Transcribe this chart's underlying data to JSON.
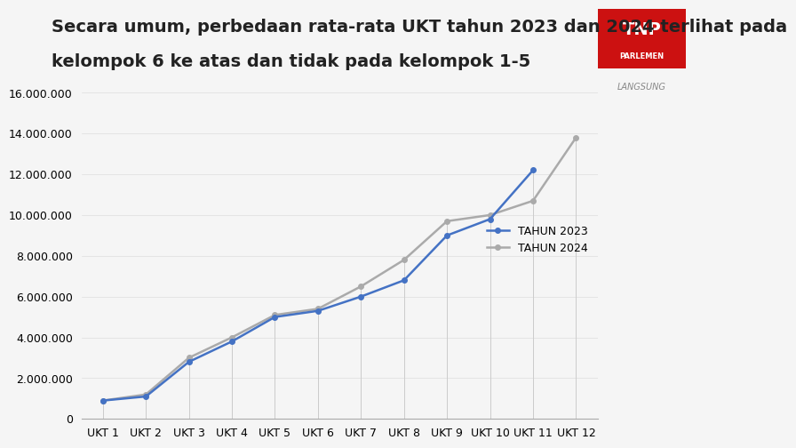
{
  "title_line1": "Secara umum, perbedaan rata-rata UKT tahun 2023 dan 2024 terlihat pada",
  "title_line2": "kelompok 6 ke atas dan tidak pada kelompok 1-5",
  "categories": [
    "UKT 1",
    "UKT 2",
    "UKT 3",
    "UKT 4",
    "UKT 5",
    "UKT 6",
    "UKT 7",
    "UKT 8",
    "UKT 9",
    "UKT 10",
    "UKT 11",
    "UKT 12"
  ],
  "tahun2023": [
    900000,
    1100000,
    2800000,
    3800000,
    5000000,
    5300000,
    6000000,
    6800000,
    9000000,
    9800000,
    12200000,
    null
  ],
  "tahun2024": [
    900000,
    1200000,
    3000000,
    4000000,
    5100000,
    5400000,
    6500000,
    7800000,
    9700000,
    10000000,
    10700000,
    13800000
  ],
  "color_2023": "#4472c4",
  "color_2024": "#aaaaaa",
  "legend_2023": "TAHUN 2023",
  "legend_2024": "TAHUN 2024",
  "ylim_min": 0,
  "ylim_max": 16000000,
  "ytick_step": 2000000,
  "background_color": "#f5f5f5",
  "title_fontsize": 14,
  "axis_fontsize": 9,
  "legend_fontsize": 9,
  "logo_box_color": "#cc1111",
  "logo_text": "TNP\nPARLEMEN",
  "watermark": "LANGSUNG"
}
